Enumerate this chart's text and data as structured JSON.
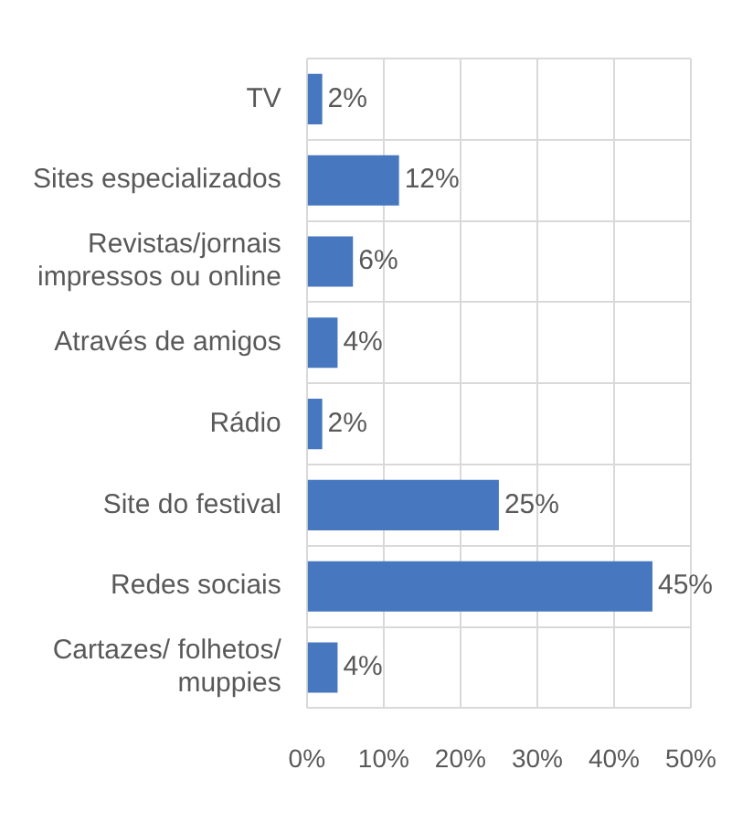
{
  "chart_data": {
    "type": "bar",
    "orientation": "horizontal",
    "categories": [
      "TV",
      "Sites especializados",
      "Revistas/jornais\nimpressos ou online",
      "Através de amigos",
      "Rádio",
      "Site do festival",
      "Redes sociais",
      "Cartazes/ folhetos/\nmuppies"
    ],
    "values": [
      2,
      12,
      6,
      4,
      2,
      25,
      45,
      4
    ],
    "color": "#4677bf",
    "value_labels": [
      "2%",
      "12%",
      "6%",
      "4%",
      "2%",
      "25%",
      "45%",
      "4%"
    ],
    "xlim": [
      0,
      50
    ],
    "xticks": [
      {
        "value": 0,
        "label": "0%"
      },
      {
        "value": 10,
        "label": "10%"
      },
      {
        "value": 20,
        "label": "20%"
      },
      {
        "value": 30,
        "label": "30%"
      },
      {
        "value": 40,
        "label": "40%"
      },
      {
        "value": 50,
        "label": "50%"
      }
    ],
    "grid": true,
    "legend": false
  }
}
